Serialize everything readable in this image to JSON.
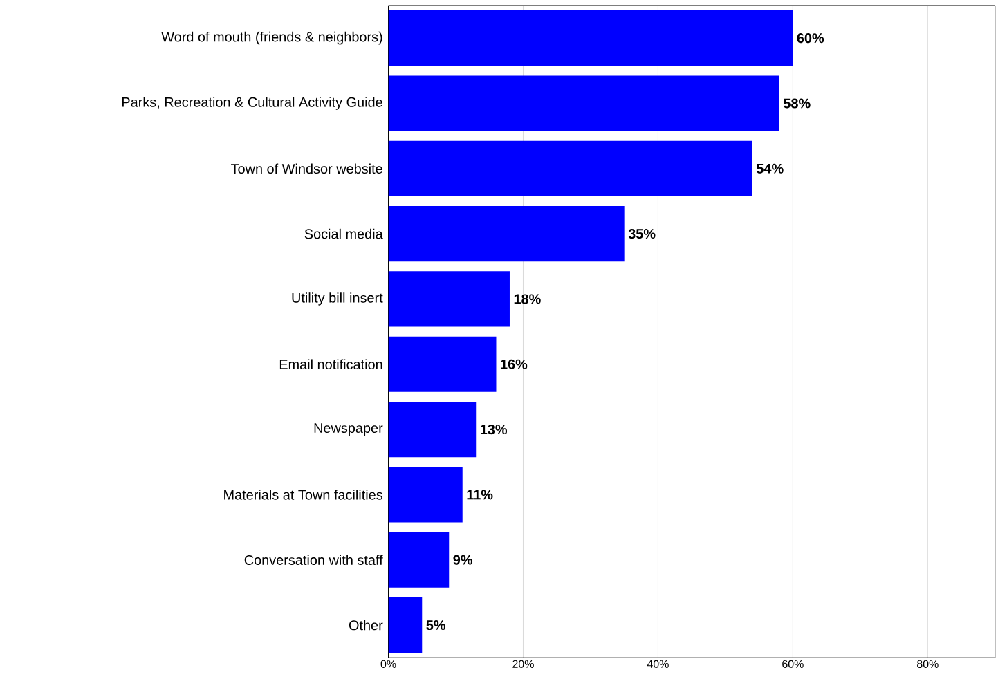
{
  "chart_data": {
    "type": "bar",
    "orientation": "horizontal",
    "categories": [
      "Word of mouth (friends & neighbors)",
      "Parks, Recreation & Cultural Activity Guide",
      "Town of Windsor website",
      "Social media",
      "Utility bill insert",
      "Email notification",
      "Newspaper",
      "Materials at Town facilities",
      "Conversation with staff",
      "Other"
    ],
    "values": [
      60,
      58,
      54,
      35,
      18,
      16,
      13,
      11,
      9,
      5
    ],
    "value_labels": [
      "60%",
      "58%",
      "54%",
      "35%",
      "18%",
      "16%",
      "13%",
      "11%",
      "9%",
      "5%"
    ],
    "color": "#0000ff",
    "xlim": [
      0,
      90
    ],
    "xticks": [
      {
        "value": 0,
        "label": "0%"
      },
      {
        "value": 20,
        "label": "20%"
      },
      {
        "value": 40,
        "label": "40%"
      },
      {
        "value": 60,
        "label": "60%"
      },
      {
        "value": 80,
        "label": "80%"
      }
    ],
    "grid": "x"
  }
}
